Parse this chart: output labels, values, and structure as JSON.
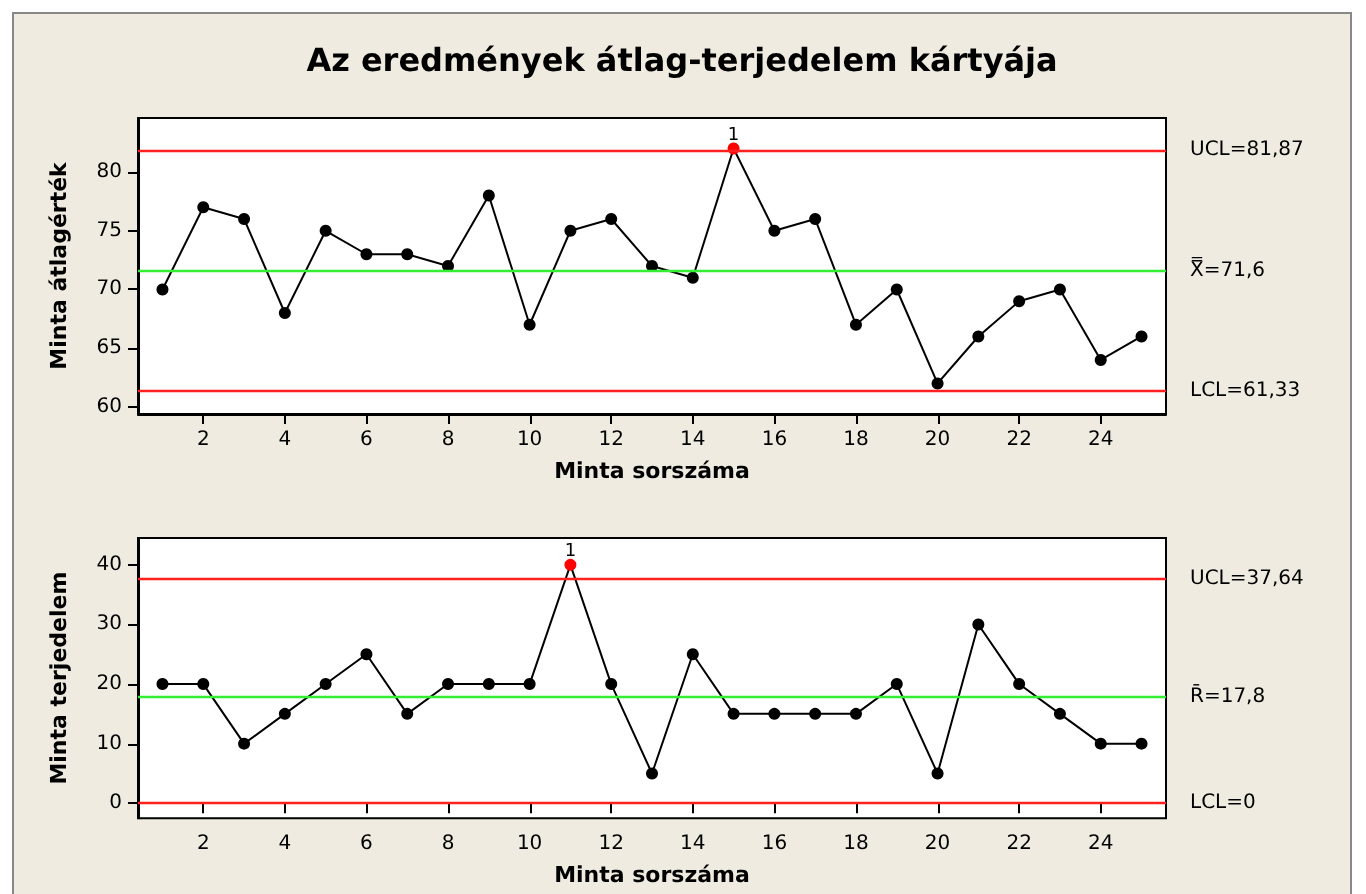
{
  "chart_data": [
    {
      "type": "line",
      "title": "Az eredmények átlag-terjedelem kártyája",
      "xlabel": "Minta sorszáma",
      "ylabel": "Minta átlagérték",
      "x": [
        1,
        2,
        3,
        4,
        5,
        6,
        7,
        8,
        9,
        10,
        11,
        12,
        13,
        14,
        15,
        16,
        17,
        18,
        19,
        20,
        21,
        22,
        23,
        24,
        25
      ],
      "series": [
        {
          "color": "#000000",
          "colors": [
            "#000000",
            "#000000",
            "#000000",
            "#000000",
            "#000000",
            "#000000",
            "#000000",
            "#000000",
            "#000000",
            "#000000",
            "#000000",
            "#000000",
            "#000000",
            "#000000",
            "#ff0000",
            "#000000",
            "#000000",
            "#000000",
            "#000000",
            "#000000",
            "#000000",
            "#000000",
            "#000000",
            "#000000",
            "#000000"
          ],
          "values": [
            70,
            77,
            76,
            68,
            75,
            73,
            73,
            72,
            78,
            67,
            75,
            76,
            72,
            71,
            82,
            75,
            76,
            67,
            70,
            62,
            66,
            69,
            70,
            64,
            66
          ]
        }
      ],
      "xlim": [
        0.4,
        25.6
      ],
      "xticks": [
        2,
        4,
        6,
        8,
        10,
        12,
        14,
        16,
        18,
        20,
        22,
        24
      ],
      "ylim": [
        59.4,
        84.6
      ],
      "yticks": [
        60,
        65,
        70,
        75,
        80
      ],
      "ref_lines": [
        {
          "axis": "y",
          "value": 81.87,
          "label": "UCL=81,87",
          "color": "#ff2020"
        },
        {
          "axis": "y",
          "value": 71.6,
          "label": "X̿=71,6",
          "color": "#33ee33"
        },
        {
          "axis": "y",
          "value": 61.33,
          "label": "LCL=61,33",
          "color": "#ff2020"
        }
      ],
      "annotations": [
        {
          "text": "1",
          "x": 15,
          "y": 82
        }
      ],
      "marker": "circle",
      "grid": false
    },
    {
      "type": "line",
      "xlabel": "Minta sorszáma",
      "ylabel": "Minta terjedelem",
      "x": [
        1,
        2,
        3,
        4,
        5,
        6,
        7,
        8,
        9,
        10,
        11,
        12,
        13,
        14,
        15,
        16,
        17,
        18,
        19,
        20,
        21,
        22,
        23,
        24,
        25
      ],
      "series": [
        {
          "color": "#000000",
          "colors": [
            "#000000",
            "#000000",
            "#000000",
            "#000000",
            "#000000",
            "#000000",
            "#000000",
            "#000000",
            "#000000",
            "#000000",
            "#ff0000",
            "#000000",
            "#000000",
            "#000000",
            "#000000",
            "#000000",
            "#000000",
            "#000000",
            "#000000",
            "#000000",
            "#000000",
            "#000000",
            "#000000",
            "#000000",
            "#000000"
          ],
          "values": [
            20,
            20,
            10,
            15,
            20,
            25,
            15,
            20,
            20,
            20,
            40,
            20,
            5,
            25,
            15,
            15,
            15,
            15,
            20,
            5,
            30,
            20,
            15,
            10,
            10
          ]
        }
      ],
      "xlim": [
        0.4,
        25.6
      ],
      "xticks": [
        2,
        4,
        6,
        8,
        10,
        12,
        14,
        16,
        18,
        20,
        22,
        24
      ],
      "ylim": [
        -2.5,
        44.5
      ],
      "yticks": [
        0,
        10,
        20,
        30,
        40
      ],
      "ref_lines": [
        {
          "axis": "y",
          "value": 37.64,
          "label": "UCL=37,64",
          "color": "#ff2020"
        },
        {
          "axis": "y",
          "value": 17.8,
          "label": "R̄=17,8",
          "color": "#33ee33"
        },
        {
          "axis": "y",
          "value": 0,
          "label": "LCL=0",
          "color": "#ff2020"
        }
      ],
      "annotations": [
        {
          "text": "1",
          "x": 11,
          "y": 40
        }
      ],
      "marker": "circle",
      "grid": false
    }
  ]
}
